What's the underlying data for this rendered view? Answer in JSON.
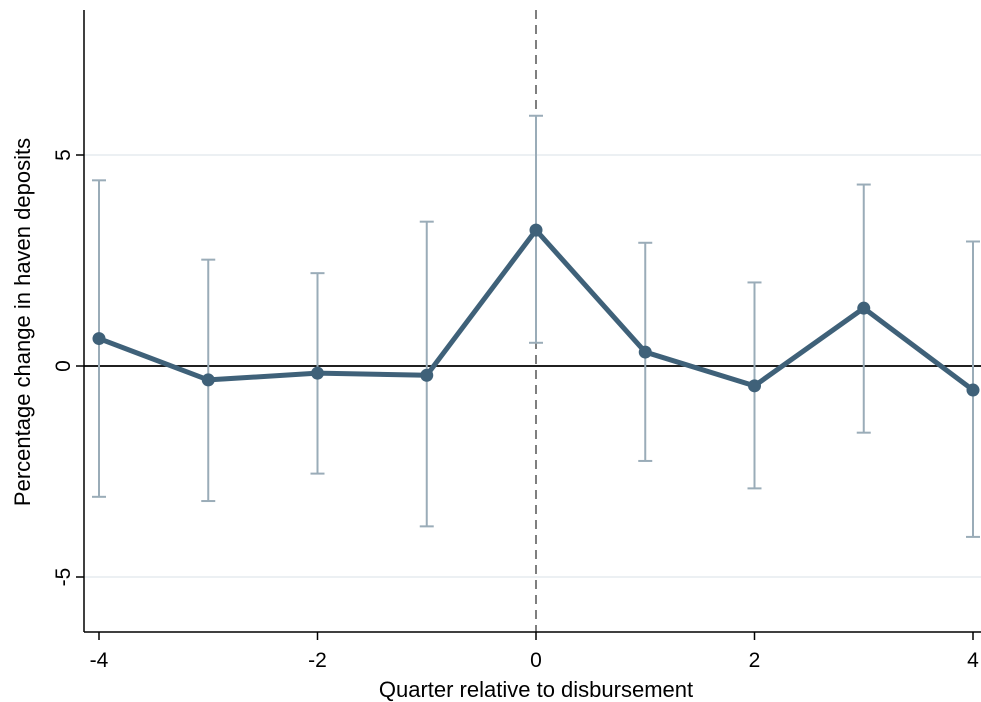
{
  "chart_data": {
    "type": "line",
    "xlabel": "Quarter relative to disbursement",
    "ylabel": "Percentage change in haven deposits",
    "xlim": [
      -4,
      4
    ],
    "ylim": [
      -6.3,
      8.4
    ],
    "xticks": [
      -4,
      -2,
      0,
      2,
      4
    ],
    "yticks": [
      -5,
      0,
      5
    ],
    "grid": true,
    "reference_lines": {
      "horizontal_y": 0,
      "vertical_x": 0
    },
    "series": [
      {
        "x": [
          -4,
          -3,
          -2,
          -1,
          0,
          1,
          2,
          3,
          4
        ],
        "values": [
          0.65,
          -0.33,
          -0.17,
          -0.22,
          3.22,
          0.33,
          -0.47,
          1.37,
          -0.57
        ],
        "ci_low": [
          -3.1,
          -3.2,
          -2.55,
          -3.8,
          0.55,
          -2.25,
          -2.9,
          -1.58,
          -4.05
        ],
        "ci_high": [
          4.4,
          2.52,
          2.2,
          3.42,
          5.93,
          2.92,
          1.98,
          4.3,
          2.95
        ]
      }
    ],
    "colors": {
      "line": "#3f6179",
      "ci": "#9aacb8",
      "grid": "#e5ecef",
      "refline": "#000000",
      "vline": "#7f7f7f"
    }
  }
}
